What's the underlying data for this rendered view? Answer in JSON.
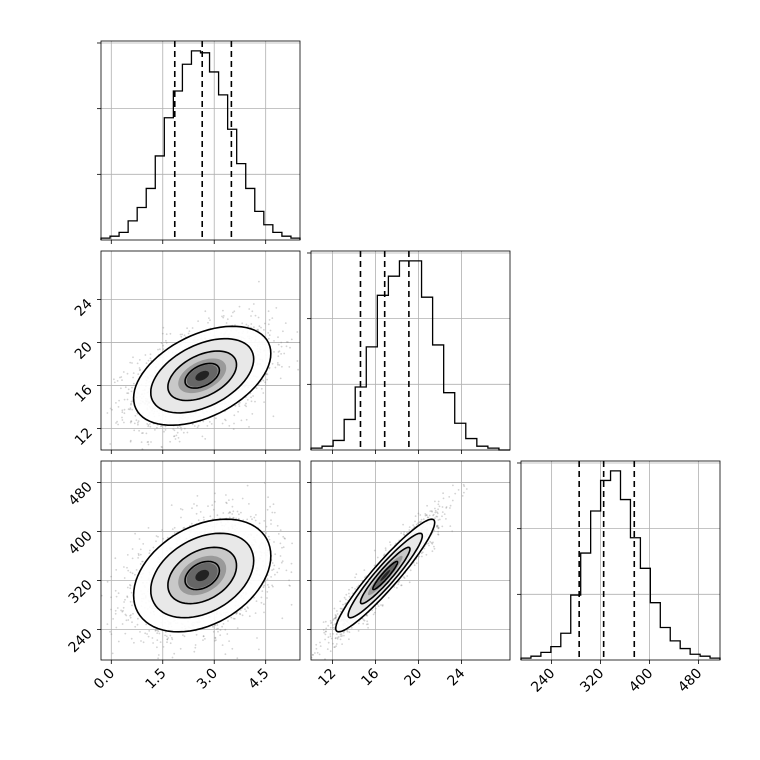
{
  "chart_data": {
    "type": "corner",
    "parameters": [
      {
        "id": "p0",
        "range": [
          -0.3,
          5.5
        ],
        "ticks": [
          0.0,
          1.5,
          3.0,
          4.5
        ],
        "tick_labels": [
          "0.0",
          "1.5",
          "3.0",
          "4.5"
        ],
        "quantiles": [
          1.85,
          2.65,
          3.5
        ],
        "hist_max": 1.0,
        "histogram": [
          0.01,
          0.02,
          0.04,
          0.1,
          0.17,
          0.27,
          0.44,
          0.64,
          0.78,
          0.92,
          0.99,
          0.98,
          0.88,
          0.76,
          0.58,
          0.4,
          0.27,
          0.15,
          0.08,
          0.04,
          0.02,
          0.01
        ]
      },
      {
        "id": "p1",
        "range": [
          10,
          28.5
        ],
        "ticks": [
          12,
          16,
          20,
          24
        ],
        "tick_labels": [
          "12",
          "16",
          "20",
          "24"
        ],
        "quantiles": [
          14.6,
          16.85,
          19.1
        ],
        "hist_max": 1.0,
        "histogram": [
          0.01,
          0.02,
          0.05,
          0.16,
          0.33,
          0.54,
          0.81,
          0.91,
          0.99,
          0.99,
          0.8,
          0.55,
          0.3,
          0.14,
          0.06,
          0.02,
          0.01,
          0.0
        ]
      },
      {
        "id": "p2",
        "range": [
          190,
          515
        ],
        "ticks": [
          240,
          320,
          400,
          480
        ],
        "tick_labels": [
          "240",
          "320",
          "400",
          "480"
        ],
        "quantiles": [
          285,
          325,
          375
        ],
        "hist_max": 1.0,
        "histogram": [
          0.01,
          0.02,
          0.04,
          0.07,
          0.14,
          0.34,
          0.56,
          0.78,
          0.94,
          0.99,
          0.84,
          0.64,
          0.48,
          0.3,
          0.17,
          0.1,
          0.06,
          0.03,
          0.02,
          0.01
        ]
      }
    ],
    "pairs": [
      {
        "x": "p0",
        "y": "p1",
        "mean": [
          2.65,
          16.9
        ],
        "sd": [
          1.0,
          2.3
        ],
        "corr": 0.45,
        "contour_sigmas": [
          0.5,
          1.0,
          1.5,
          2.0
        ]
      },
      {
        "x": "p0",
        "y": "p2",
        "mean": [
          2.65,
          328
        ],
        "sd": [
          1.0,
          46
        ],
        "corr": 0.35,
        "contour_sigmas": [
          0.5,
          1.0,
          1.5,
          2.0
        ]
      },
      {
        "x": "p1",
        "y": "p2",
        "mean": [
          16.9,
          328
        ],
        "sd": [
          2.3,
          46
        ],
        "corr": 0.94,
        "contour_sigmas": [
          0.5,
          1.0,
          1.5,
          2.0
        ]
      }
    ],
    "grid": true,
    "colors": {
      "line": "#000000",
      "grid": "#b0b0b0",
      "points": "#808080"
    }
  }
}
